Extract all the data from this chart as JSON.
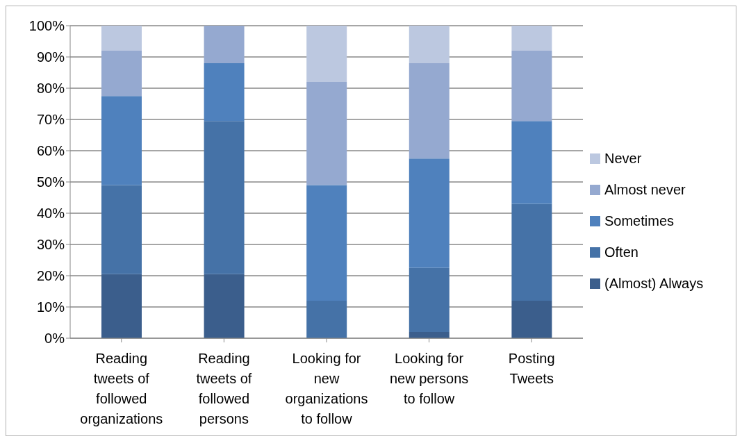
{
  "chart_data": {
    "type": "bar",
    "stacked": true,
    "categories": [
      "Reading tweets of followed organizations",
      "Reading tweets of followed persons",
      "Looking for new organizations to follow",
      "Looking for new persons to follow",
      "Posting Tweets"
    ],
    "series": [
      {
        "name": "(Almost) Always",
        "color": "#3b5e8c",
        "values": [
          20.5,
          20.5,
          0,
          2,
          12
        ]
      },
      {
        "name": "Often",
        "color": "#4572a7",
        "values": [
          28.5,
          49,
          12,
          20.5,
          31
        ]
      },
      {
        "name": "Sometimes",
        "color": "#4f81bd",
        "values": [
          28.5,
          18.5,
          37,
          35,
          26.5
        ]
      },
      {
        "name": "Almost never",
        "color": "#95a9d0",
        "values": [
          14.5,
          12,
          33,
          30.5,
          22.5
        ]
      },
      {
        "name": "Never",
        "color": "#bcc8e0",
        "values": [
          8,
          0,
          18,
          12,
          8
        ]
      }
    ],
    "ylim": [
      0,
      100
    ],
    "yticks": [
      {
        "value": 0,
        "label": "0%"
      },
      {
        "value": 10,
        "label": "10%"
      },
      {
        "value": 20,
        "label": "20%"
      },
      {
        "value": 30,
        "label": "30%"
      },
      {
        "value": 40,
        "label": "40%"
      },
      {
        "value": 50,
        "label": "50%"
      },
      {
        "value": 60,
        "label": "60%"
      },
      {
        "value": 70,
        "label": "70%"
      },
      {
        "value": 80,
        "label": "80%"
      },
      {
        "value": 90,
        "label": "90%"
      },
      {
        "value": 100,
        "label": "100%"
      }
    ],
    "grid": "y",
    "legend": "right"
  }
}
